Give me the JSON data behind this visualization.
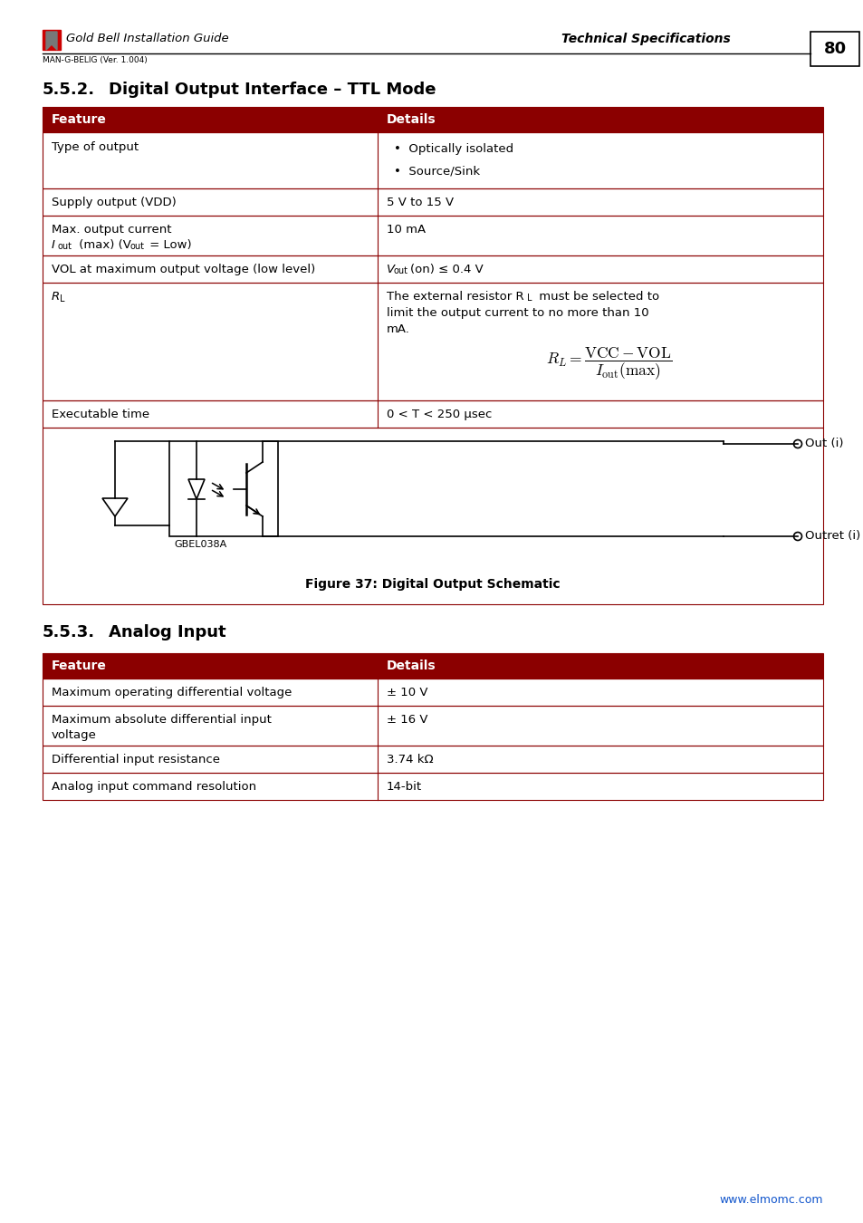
{
  "page_number": "80",
  "header_left": "Gold Bell Installation Guide",
  "header_right": "Technical Specifications",
  "header_sub": "MAN-G-BELIG (Ver. 1.004)",
  "section1_num": "5.5.2.",
  "section1_text": "Digital Output Interface – TTL Mode",
  "section2_num": "5.5.3.",
  "section2_text": "Analog Input",
  "table1_header": [
    "Feature",
    "Details"
  ],
  "table2_header": [
    "Feature",
    "Details"
  ],
  "table2_rows": [
    [
      "Maximum operating differential voltage",
      "± 10 V"
    ],
    [
      "Maximum absolute differential input\nvoltage",
      "± 16 V"
    ],
    [
      "Differential input resistance",
      "3.74 kΩ"
    ],
    [
      "Analog input command resolution",
      "14-bit"
    ]
  ],
  "header_color": "#8B0000",
  "border_color": "#8B0000",
  "header_text_color": "#FFFFFF",
  "background_color": "#FFFFFF",
  "website": "www.elmomc.com",
  "website_color": "#1155CC",
  "figure_caption": "Figure 37: Digital Output Schematic"
}
